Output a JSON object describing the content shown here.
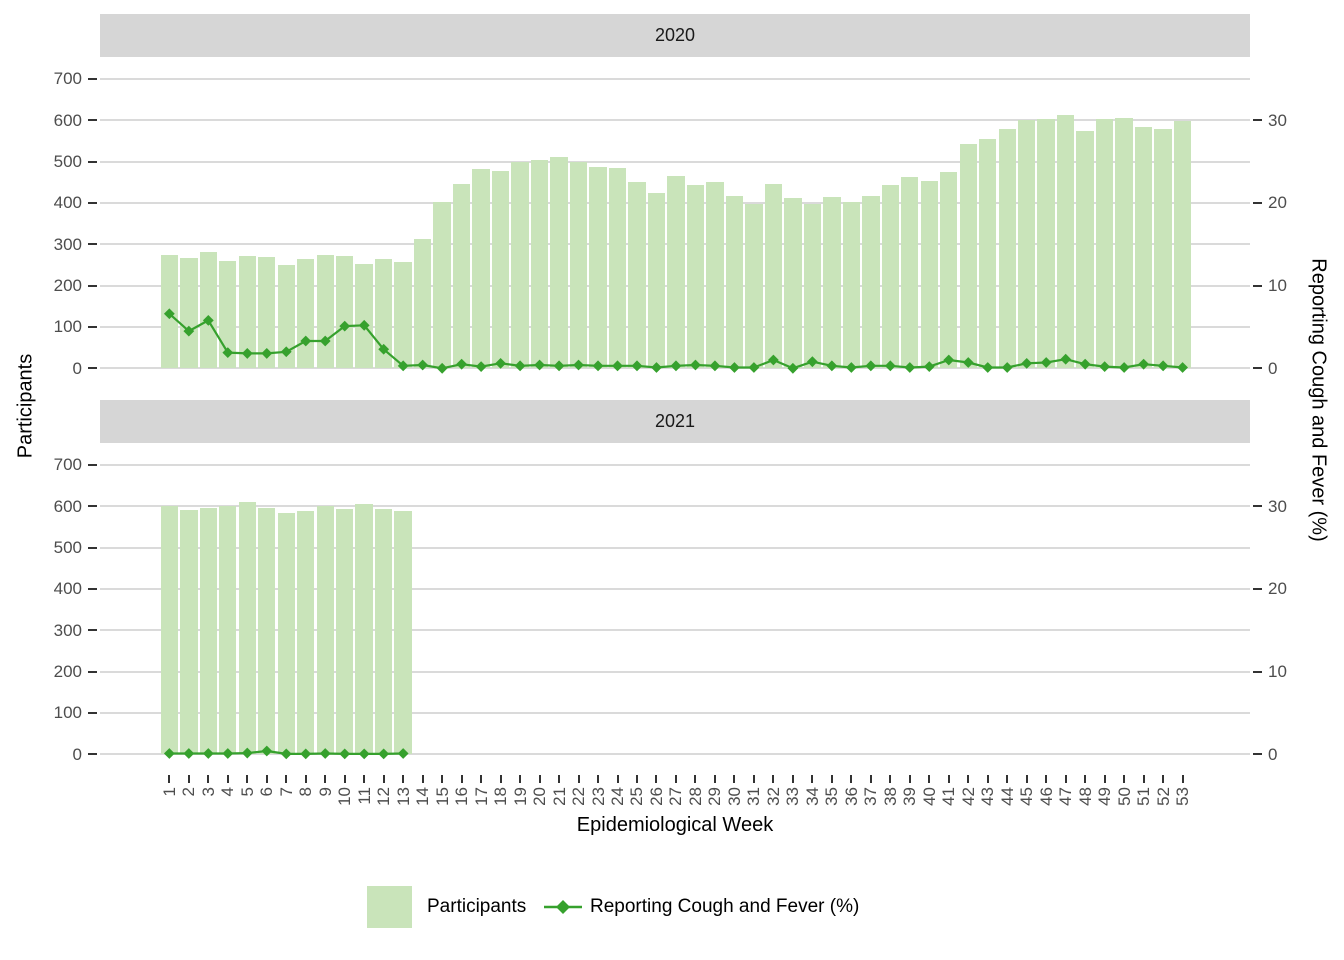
{
  "chart_data": {
    "type": "bar+line dual-axis, faceted by year",
    "x_axis": {
      "label": "Epidemiological Week",
      "ticks": [
        1,
        2,
        3,
        4,
        5,
        6,
        7,
        8,
        9,
        10,
        11,
        12,
        13,
        14,
        15,
        16,
        17,
        18,
        19,
        20,
        21,
        22,
        23,
        24,
        25,
        26,
        27,
        28,
        29,
        30,
        31,
        32,
        33,
        34,
        35,
        36,
        37,
        38,
        39,
        40,
        41,
        42,
        43,
        44,
        45,
        46,
        47,
        48,
        49,
        50,
        51,
        52,
        53
      ]
    },
    "left_axis": {
      "label": "Participants",
      "ticks": [
        0,
        100,
        200,
        300,
        400,
        500,
        600,
        700
      ],
      "range": [
        0,
        757
      ]
    },
    "right_axis": {
      "label": "Reporting Cough and Fever (%)",
      "ticks": [
        0,
        10,
        20,
        30
      ],
      "participants_per_percent": 20
    },
    "grid": "horizontal major gridlines only",
    "legend_position": "bottom",
    "facets": [
      {
        "label": "2020",
        "weeks": [
          1,
          2,
          3,
          4,
          5,
          6,
          7,
          8,
          9,
          10,
          11,
          12,
          13,
          14,
          15,
          16,
          17,
          18,
          19,
          20,
          21,
          22,
          23,
          24,
          25,
          26,
          27,
          28,
          29,
          30,
          31,
          32,
          33,
          34,
          35,
          36,
          37,
          38,
          39,
          40,
          41,
          42,
          43,
          44,
          45,
          46,
          47,
          48,
          49,
          50,
          51,
          52,
          53
        ],
        "participants": [
          275,
          268,
          282,
          260,
          271,
          270,
          250,
          264,
          274,
          272,
          252,
          264,
          257,
          314,
          403,
          446,
          483,
          478,
          500,
          504,
          511,
          498,
          487,
          484,
          450,
          423,
          465,
          443,
          450,
          418,
          398,
          446,
          412,
          398,
          415,
          402,
          416,
          443,
          464,
          454,
          475,
          542,
          555,
          579,
          600,
          602,
          614,
          574,
          603,
          605,
          584,
          579,
          598
        ],
        "pct_cough_fever": [
          6.6,
          4.5,
          5.8,
          1.9,
          1.8,
          1.8,
          2.0,
          3.3,
          3.3,
          5.1,
          5.2,
          2.3,
          0.3,
          0.4,
          0.0,
          0.5,
          0.2,
          0.6,
          0.3,
          0.4,
          0.3,
          0.4,
          0.3,
          0.3,
          0.3,
          0.1,
          0.3,
          0.4,
          0.3,
          0.1,
          0.1,
          1.0,
          0.0,
          0.8,
          0.3,
          0.1,
          0.3,
          0.3,
          0.1,
          0.2,
          1.0,
          0.7,
          0.1,
          0.1,
          0.6,
          0.7,
          1.1,
          0.5,
          0.2,
          0.1,
          0.5,
          0.3,
          0.1
        ]
      },
      {
        "label": "2021",
        "weeks": [
          1,
          2,
          3,
          4,
          5,
          6,
          7,
          8,
          9,
          10,
          11,
          12,
          13
        ],
        "participants": [
          600,
          592,
          595,
          600,
          610,
          596,
          585,
          588,
          600,
          594,
          605,
          593,
          589
        ],
        "pct_cough_fever": [
          0.1,
          0.1,
          0.1,
          0.1,
          0.15,
          0.4,
          0.05,
          0.05,
          0.1,
          0.05,
          0.05,
          0.05,
          0.1
        ]
      }
    ],
    "legend": {
      "bar_label": "Participants",
      "line_label": "Reporting Cough and Fever (%)"
    },
    "colors": {
      "bar_fill": "#c9e4ba",
      "line": "#36a12d",
      "strip_bg": "#d6d6d6",
      "gridline": "#dadada",
      "tick_text": "#4d4d4d",
      "axis_title_text": "#000000"
    }
  }
}
